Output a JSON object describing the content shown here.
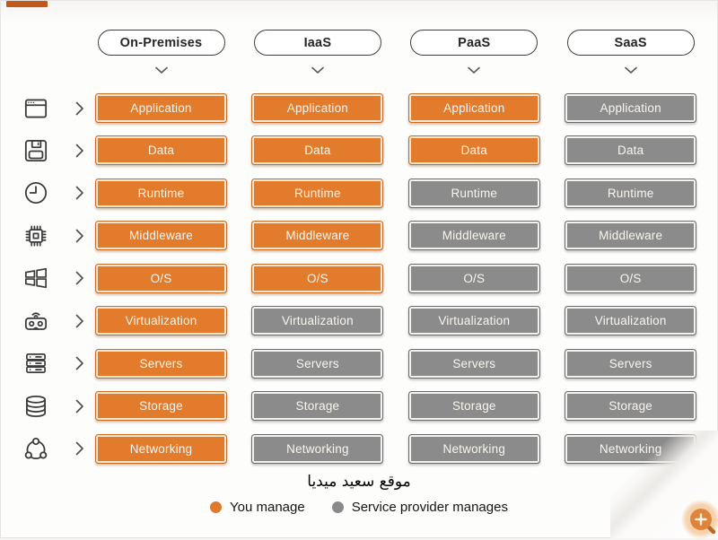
{
  "header": {
    "columns": [
      {
        "id": "on-premises",
        "label": "On-Premises"
      },
      {
        "id": "iaas",
        "label": "IaaS"
      },
      {
        "id": "paas",
        "label": "PaaS"
      },
      {
        "id": "saas",
        "label": "SaaS"
      }
    ]
  },
  "rows": [
    {
      "label": "Application",
      "icon": "browser-window-icon"
    },
    {
      "label": "Data",
      "icon": "floppy-disk-icon"
    },
    {
      "label": "Runtime",
      "icon": "clock-icon"
    },
    {
      "label": "Middleware",
      "icon": "cpu-chip-icon"
    },
    {
      "label": "O/S",
      "icon": "windows-logo-icon"
    },
    {
      "label": "Virtualization",
      "icon": "vr-headset-icon"
    },
    {
      "label": "Servers",
      "icon": "server-rack-icon"
    },
    {
      "label": "Storage",
      "icon": "database-icon"
    },
    {
      "label": "Networking",
      "icon": "network-nodes-icon"
    }
  ],
  "matrix": {
    "on-premises": [
      "you",
      "you",
      "you",
      "you",
      "you",
      "you",
      "you",
      "you",
      "you"
    ],
    "iaas": [
      "you",
      "you",
      "you",
      "you",
      "you",
      "provider",
      "provider",
      "provider",
      "provider"
    ],
    "paas": [
      "you",
      "you",
      "provider",
      "provider",
      "provider",
      "provider",
      "provider",
      "provider",
      "provider"
    ],
    "saas": [
      "provider",
      "provider",
      "provider",
      "provider",
      "provider",
      "provider",
      "provider",
      "provider",
      "provider"
    ]
  },
  "legend": {
    "items": [
      {
        "key": "you",
        "label": "You manage",
        "color": "#E0792C"
      },
      {
        "key": "provider",
        "label": "Service provider manages",
        "color": "#8A8A8A"
      }
    ]
  },
  "watermark": {
    "text": "موقع سعيد ميديا"
  },
  "colors": {
    "you_fill": "#E27B2B",
    "you_border": "#CE6A1E",
    "you_inset": "#F6E7D2",
    "provider_fill": "#8B8B8B",
    "provider_border": "#6A6A6A",
    "provider_inset": "#F3F2F1",
    "box_text": "#FAF6EF",
    "accent_dash": "#C3581B",
    "zoom_button": "#DF853B"
  }
}
